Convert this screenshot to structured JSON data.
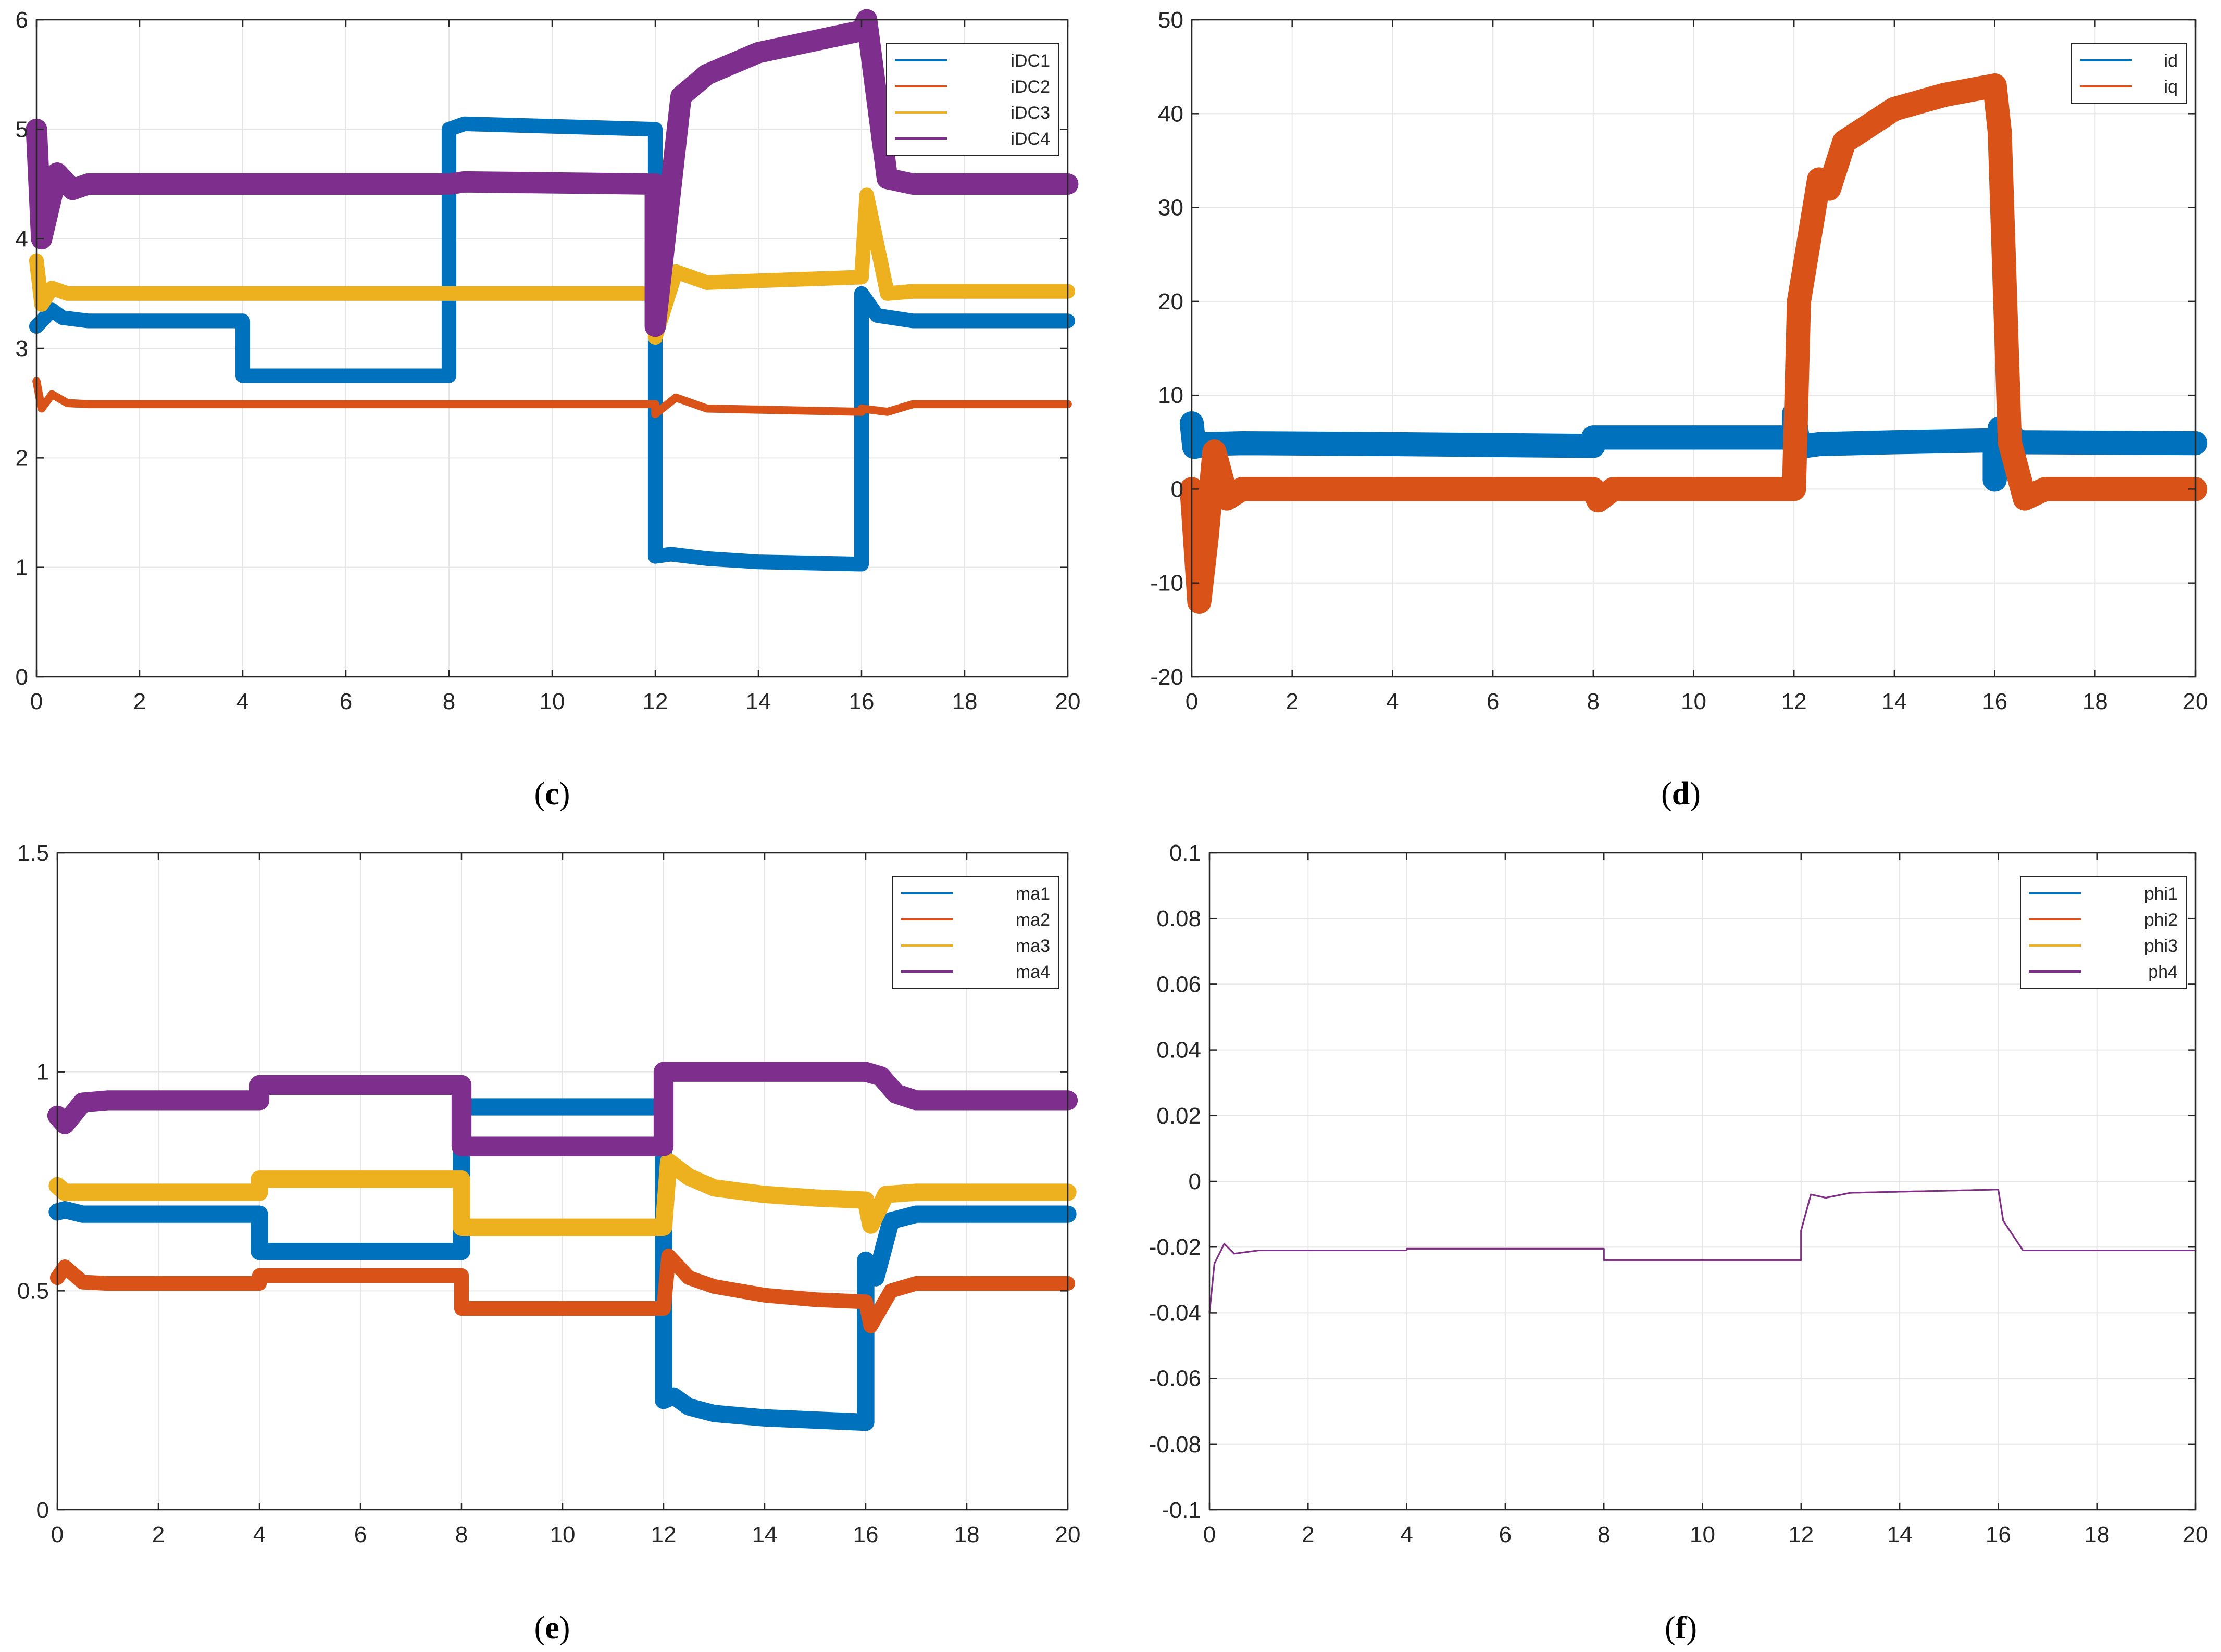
{
  "colors": {
    "blue": "#0072BD",
    "orange": "#D95319",
    "yellow": "#EDB120",
    "purple": "#7E2F8E",
    "grid": "#E6E6E6",
    "axis": "#262626"
  },
  "chart_data": [
    {
      "id": "c",
      "caption_open": "(",
      "caption_letter": "c",
      "caption_close": ")",
      "type": "line",
      "xlim": [
        0,
        20
      ],
      "ylim": [
        0,
        6
      ],
      "xticks": [
        "0",
        "2",
        "4",
        "6",
        "8",
        "10",
        "12",
        "14",
        "16",
        "18",
        "20"
      ],
      "yticks": [
        "0",
        "1",
        "2",
        "3",
        "4",
        "5",
        "6"
      ],
      "legend_position": "top-right",
      "series": [
        {
          "name": "iDC1",
          "color": "blue",
          "x": [
            0,
            0.1,
            0.3,
            0.5,
            1,
            4,
            4,
            8,
            8,
            8.3,
            12,
            12,
            12.3,
            13,
            14,
            16,
            16,
            16.3,
            17,
            20
          ],
          "y": [
            3.2,
            3.25,
            3.35,
            3.28,
            3.25,
            3.25,
            2.75,
            2.75,
            5.0,
            5.05,
            5.0,
            1.1,
            1.12,
            1.08,
            1.05,
            1.03,
            3.5,
            3.3,
            3.25,
            3.25
          ],
          "band": 0.02
        },
        {
          "name": "iDC2",
          "color": "orange",
          "x": [
            0,
            0.1,
            0.3,
            0.6,
            1,
            12,
            12,
            12.4,
            13,
            16,
            16,
            16.5,
            17,
            20
          ],
          "y": [
            2.7,
            2.45,
            2.58,
            2.5,
            2.49,
            2.49,
            2.4,
            2.55,
            2.45,
            2.42,
            2.45,
            2.42,
            2.49,
            2.49
          ],
          "band": 0.01
        },
        {
          "name": "iDC3",
          "color": "yellow",
          "x": [
            0,
            0.1,
            0.3,
            0.6,
            1,
            12,
            12,
            12.4,
            13,
            16,
            16.1,
            16.5,
            17,
            20
          ],
          "y": [
            3.8,
            3.4,
            3.55,
            3.5,
            3.5,
            3.5,
            3.1,
            3.7,
            3.6,
            3.65,
            4.4,
            3.5,
            3.52,
            3.52
          ],
          "band": 0.02
        },
        {
          "name": "iDC4",
          "color": "purple",
          "x": [
            0,
            0.1,
            0.4,
            0.7,
            1,
            8,
            8.3,
            12,
            12,
            12.5,
            13,
            14,
            16,
            16.1,
            16.5,
            17,
            20
          ],
          "y": [
            5.0,
            4.0,
            4.6,
            4.45,
            4.5,
            4.5,
            4.52,
            4.5,
            3.2,
            5.3,
            5.5,
            5.7,
            5.9,
            6.0,
            4.55,
            4.5,
            4.5
          ],
          "band": 0.03
        }
      ]
    },
    {
      "id": "d",
      "caption_open": "(",
      "caption_letter": "d",
      "caption_close": ")",
      "type": "line",
      "xlim": [
        0,
        20
      ],
      "ylim": [
        -20,
        50
      ],
      "xticks": [
        "0",
        "2",
        "4",
        "6",
        "8",
        "10",
        "12",
        "14",
        "16",
        "18",
        "20"
      ],
      "yticks": [
        "-20",
        "-10",
        "0",
        "10",
        "20",
        "30",
        "40",
        "50"
      ],
      "legend_position": "top-right",
      "series": [
        {
          "name": "id",
          "color": "blue",
          "x": [
            0,
            0.05,
            0.3,
            1,
            4,
            8,
            8,
            12,
            12,
            12.1,
            12.5,
            14,
            16,
            16,
            16.1,
            16.5,
            20
          ],
          "y": [
            7,
            4.5,
            4.8,
            4.9,
            4.8,
            4.6,
            5.5,
            5.5,
            8,
            4.5,
            4.8,
            5.0,
            5.2,
            1,
            6.5,
            5.0,
            4.9
          ],
          "band": 0.4
        },
        {
          "name": "iq",
          "color": "orange",
          "x": [
            0,
            0.15,
            0.3,
            0.45,
            0.7,
            1,
            4,
            8,
            8.1,
            8.4,
            8.7,
            12,
            12.1,
            12.5,
            12.7,
            13,
            14,
            15,
            16,
            16.1,
            16.3,
            16.6,
            17,
            20
          ],
          "y": [
            0,
            -12,
            -5,
            4,
            -1,
            0,
            0,
            0,
            -1.2,
            0,
            0,
            0,
            20,
            33,
            32,
            37,
            40.5,
            42,
            43,
            38,
            5,
            -1,
            0,
            0
          ],
          "band": 0.4
        }
      ]
    },
    {
      "id": "e",
      "caption_open": "(",
      "caption_letter": "e",
      "caption_close": ")",
      "type": "line",
      "xlim": [
        0,
        20
      ],
      "ylim": [
        0,
        1.5
      ],
      "xticks": [
        "0",
        "2",
        "4",
        "6",
        "8",
        "10",
        "12",
        "14",
        "16",
        "18",
        "20"
      ],
      "yticks": [
        "0",
        "0.5",
        "1",
        "1.5"
      ],
      "legend_position": "top-right",
      "series": [
        {
          "name": "ma1",
          "color": "blue",
          "x": [
            0,
            0.15,
            0.5,
            1,
            4,
            4,
            8,
            8,
            12,
            12,
            12.2,
            12.5,
            13,
            14,
            15,
            16,
            16,
            16.2,
            16.5,
            17,
            20
          ],
          "y": [
            0.68,
            0.685,
            0.675,
            0.675,
            0.675,
            0.59,
            0.59,
            0.92,
            0.92,
            0.25,
            0.26,
            0.235,
            0.22,
            0.21,
            0.205,
            0.2,
            0.57,
            0.53,
            0.66,
            0.675,
            0.675
          ],
          "band": 0.006
        },
        {
          "name": "ma2",
          "color": "orange",
          "x": [
            0,
            0.15,
            0.5,
            1,
            4,
            4,
            8,
            8,
            12,
            12,
            12.1,
            12.5,
            13,
            14,
            15,
            16,
            16.1,
            16.5,
            17,
            20
          ],
          "y": [
            0.53,
            0.555,
            0.52,
            0.517,
            0.517,
            0.535,
            0.535,
            0.46,
            0.46,
            0.46,
            0.58,
            0.53,
            0.51,
            0.49,
            0.48,
            0.475,
            0.42,
            0.5,
            0.517,
            0.517
          ],
          "band": 0.005
        },
        {
          "name": "ma3",
          "color": "yellow",
          "x": [
            0,
            0.15,
            0.5,
            1,
            4,
            4,
            8,
            8,
            12,
            12,
            12.1,
            12.5,
            13,
            14,
            15,
            16,
            16.1,
            16.4,
            17,
            20
          ],
          "y": [
            0.74,
            0.725,
            0.725,
            0.725,
            0.725,
            0.755,
            0.755,
            0.645,
            0.645,
            0.645,
            0.795,
            0.76,
            0.735,
            0.72,
            0.712,
            0.707,
            0.65,
            0.72,
            0.725,
            0.725
          ],
          "band": 0.006
        },
        {
          "name": "ma4",
          "color": "purple",
          "x": [
            0,
            0.15,
            0.5,
            1,
            4,
            4,
            8,
            8,
            12,
            12,
            16,
            16.3,
            16.6,
            17,
            20
          ],
          "y": [
            0.9,
            0.88,
            0.93,
            0.935,
            0.935,
            0.97,
            0.97,
            0.83,
            0.83,
            1.0,
            1.0,
            0.99,
            0.95,
            0.935,
            0.935
          ],
          "band": 0.007
        }
      ]
    },
    {
      "id": "f",
      "caption_open": "(",
      "caption_letter": "f",
      "caption_close": ")",
      "type": "line",
      "xlim": [
        0,
        20
      ],
      "ylim": [
        -0.1,
        0.1
      ],
      "xticks": [
        "0",
        "2",
        "4",
        "6",
        "8",
        "10",
        "12",
        "14",
        "16",
        "18",
        "20"
      ],
      "yticks": [
        "-0.1",
        "-0.08",
        "-0.06",
        "-0.04",
        "-0.02",
        "0",
        "0.02",
        "0.04",
        "0.06",
        "0.08",
        "0.1"
      ],
      "legend_position": "top-right",
      "series": [
        {
          "name": "phi1",
          "color": "blue",
          "x": [
            0,
            0.1,
            0.3,
            0.5,
            1,
            4,
            4,
            8,
            8,
            12,
            12,
            12.2,
            12.5,
            13,
            16,
            16.1,
            16.5,
            17,
            20
          ],
          "y": [
            -0.04,
            -0.025,
            -0.019,
            -0.022,
            -0.021,
            -0.021,
            -0.0205,
            -0.0205,
            -0.024,
            -0.024,
            -0.015,
            -0.004,
            -0.005,
            -0.0035,
            -0.0025,
            -0.012,
            -0.021,
            -0.021,
            -0.021
          ],
          "band": 0
        },
        {
          "name": "phi2",
          "color": "orange",
          "x": [
            0,
            0.1,
            0.3,
            0.5,
            1,
            4,
            4,
            8,
            8,
            12,
            12,
            12.2,
            12.5,
            13,
            16,
            16.1,
            16.5,
            17,
            20
          ],
          "y": [
            -0.04,
            -0.025,
            -0.019,
            -0.022,
            -0.021,
            -0.021,
            -0.0205,
            -0.0205,
            -0.024,
            -0.024,
            -0.015,
            -0.004,
            -0.005,
            -0.0035,
            -0.0025,
            -0.012,
            -0.021,
            -0.021,
            -0.021
          ],
          "band": 0
        },
        {
          "name": "phi3",
          "color": "yellow",
          "x": [
            0,
            0.1,
            0.3,
            0.5,
            1,
            4,
            4,
            8,
            8,
            12,
            12,
            12.2,
            12.5,
            13,
            16,
            16.1,
            16.5,
            17,
            20
          ],
          "y": [
            -0.04,
            -0.025,
            -0.019,
            -0.022,
            -0.021,
            -0.021,
            -0.0205,
            -0.0205,
            -0.024,
            -0.024,
            -0.015,
            -0.004,
            -0.005,
            -0.0035,
            -0.0025,
            -0.012,
            -0.021,
            -0.021,
            -0.021
          ],
          "band": 0
        },
        {
          "name": "ph4",
          "color": "purple",
          "x": [
            0,
            0.1,
            0.3,
            0.5,
            1,
            4,
            4,
            8,
            8,
            12,
            12,
            12.2,
            12.5,
            13,
            16,
            16.1,
            16.5,
            17,
            20
          ],
          "y": [
            -0.04,
            -0.025,
            -0.019,
            -0.022,
            -0.021,
            -0.021,
            -0.0205,
            -0.0205,
            -0.024,
            -0.024,
            -0.015,
            -0.004,
            -0.005,
            -0.0035,
            -0.0025,
            -0.012,
            -0.021,
            -0.021,
            -0.021
          ],
          "band": 0
        }
      ]
    }
  ]
}
